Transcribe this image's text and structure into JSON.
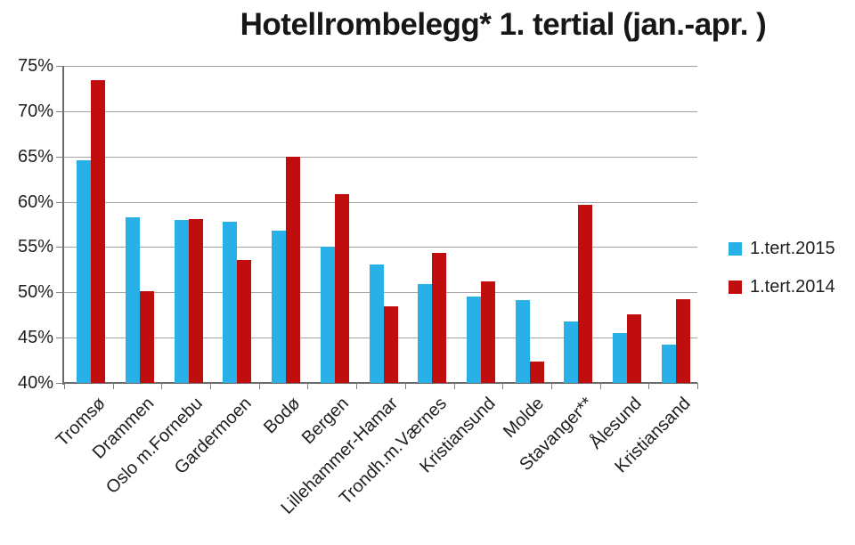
{
  "window": {
    "border_color": "#2e2e2e"
  },
  "chart_data": {
    "type": "bar",
    "title": "Hotellrombelegg* 1. tertial (jan.-apr. )",
    "categories": [
      "Tromsø",
      "Drammen",
      "Oslo m.Fornebu",
      "Gardermoen",
      "Bodø",
      "Bergen",
      "Lillehammer-Hamar",
      "Trondh.m.Værnes",
      "Kristiansund",
      "Molde",
      "Stavanger**",
      "Ålesund",
      "Kristiansand"
    ],
    "series": [
      {
        "name": "1.tert.2015",
        "color": "#29b0e6",
        "values": [
          64.6,
          58.3,
          58.0,
          57.8,
          56.8,
          55.0,
          53.1,
          50.9,
          49.5,
          49.1,
          46.8,
          45.5,
          44.2
        ]
      },
      {
        "name": "1.tert.2014",
        "color": "#c00d0d",
        "values": [
          73.4,
          50.1,
          58.1,
          53.6,
          65.0,
          60.8,
          48.5,
          54.4,
          51.2,
          42.4,
          59.7,
          47.6,
          49.2
        ]
      }
    ],
    "ylim": [
      40,
      75
    ],
    "ytick_step": 5,
    "ytick_labels": [
      "75%",
      "70%",
      "65%",
      "60%",
      "55%",
      "50%",
      "45%",
      "40%"
    ],
    "grid": true,
    "legend_position": "right",
    "style": {
      "gridline_color": "#a3a3a3",
      "axis_color": "#6a6a6a",
      "tick_color": "#7f7f7f",
      "text_color": "#1f1f1f"
    }
  }
}
